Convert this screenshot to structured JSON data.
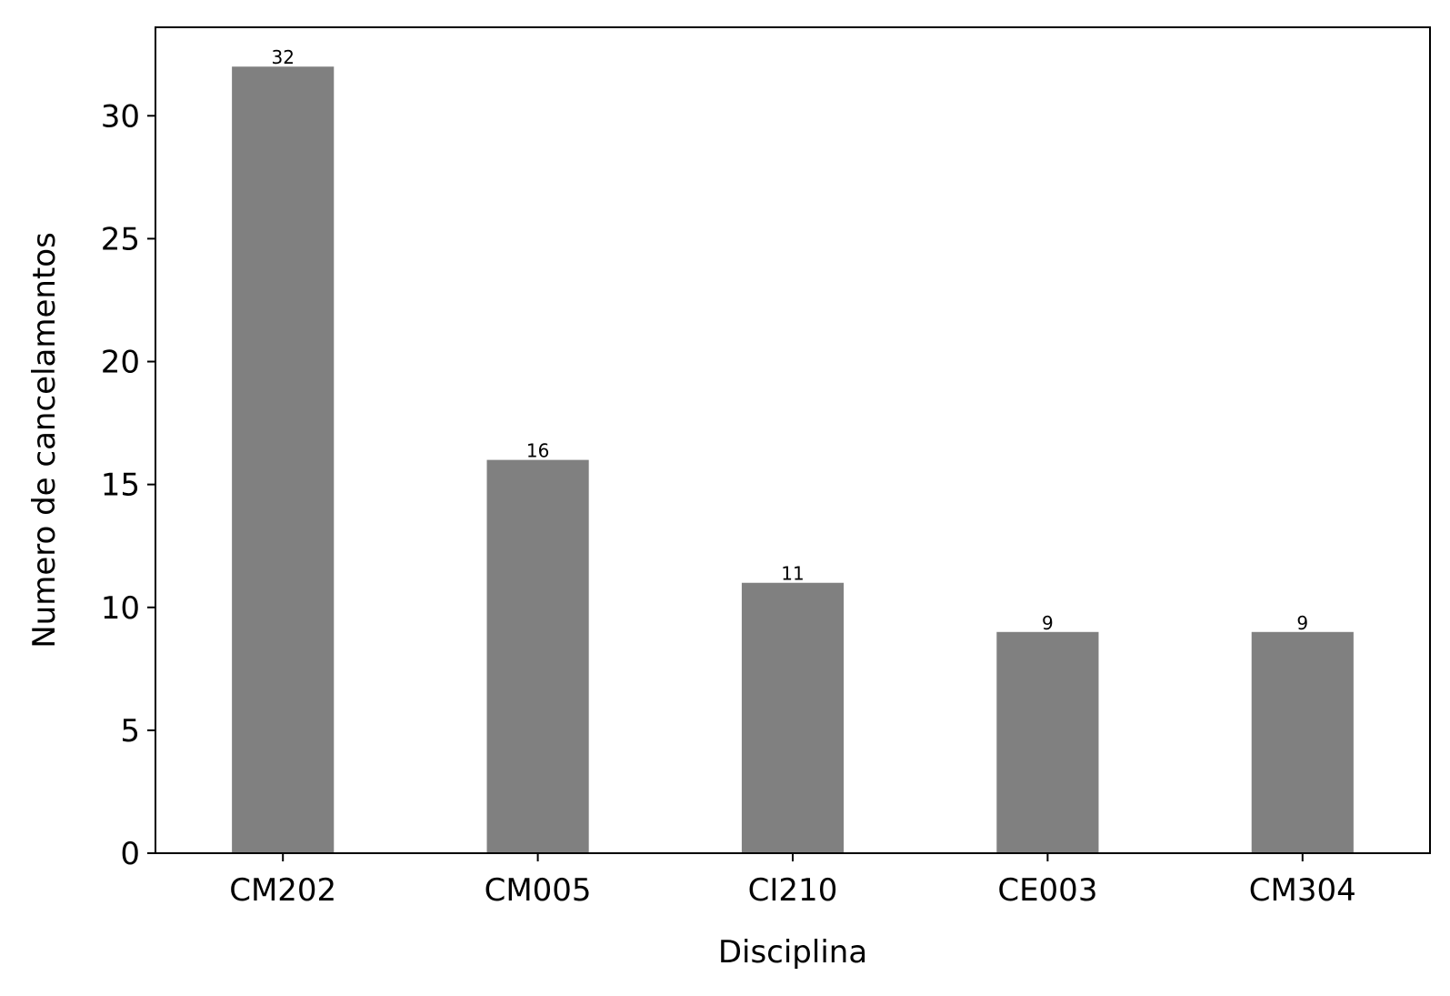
{
  "chart_data": {
    "type": "bar",
    "title": "",
    "xlabel": "Disciplina",
    "ylabel": "Numero de cancelamentos",
    "categories": [
      "CM202",
      "CM005",
      "CI210",
      "CE003",
      "CM304"
    ],
    "values": [
      32,
      16,
      11,
      9,
      9
    ],
    "data_labels": [
      "32",
      "16",
      "11",
      "9",
      "9"
    ],
    "ylim": [
      0,
      33.6
    ],
    "yticks": [
      0,
      5,
      10,
      15,
      20,
      25,
      30
    ],
    "grid": false,
    "legend": "none",
    "colors": {
      "bar": "#808080",
      "axis": "#000000",
      "background": "#ffffff"
    }
  }
}
